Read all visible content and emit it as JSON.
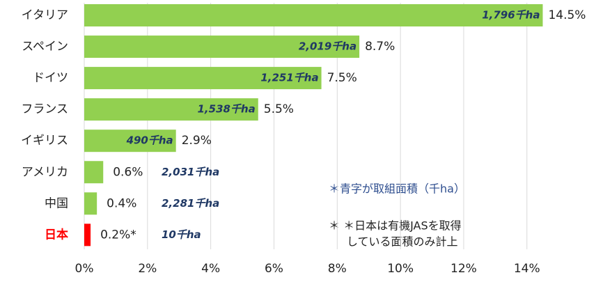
{
  "chart_data": {
    "type": "bar",
    "orientation": "horizontal",
    "categories": [
      "イタリア",
      "スペイン",
      "ドイツ",
      "フランス",
      "イギリス",
      "アメリカ",
      "中国",
      "日本"
    ],
    "values": [
      14.5,
      8.7,
      7.5,
      5.5,
      2.9,
      0.6,
      0.4,
      0.2
    ],
    "value_labels": [
      "14.5%",
      "8.7%",
      "7.5%",
      "5.5%",
      "2.9%",
      "0.6%",
      "0.4%",
      "0.2%*"
    ],
    "area_labels": [
      "1,796千ha",
      "2,019千ha",
      "1,251千ha",
      "1,538千ha",
      "490千ha",
      "2,031千ha",
      "2,281千ha",
      "10千ha"
    ],
    "colors": [
      "#92d050",
      "#92d050",
      "#92d050",
      "#92d050",
      "#92d050",
      "#92d050",
      "#92d050",
      "#ff0000"
    ],
    "highlight_category": "日本",
    "highlight_color": "#ff0000",
    "xlim": [
      0,
      14.6
    ],
    "xticks": [
      {
        "value": 0,
        "label": "0%"
      },
      {
        "value": 2,
        "label": "2%"
      },
      {
        "value": 4,
        "label": "4%"
      },
      {
        "value": 6,
        "label": "6%"
      },
      {
        "value": 8,
        "label": "8%"
      },
      {
        "value": 10,
        "label": "10%"
      },
      {
        "value": 12,
        "label": "12%"
      },
      {
        "value": 14,
        "label": "14%"
      }
    ],
    "grid": true,
    "annotations": [
      "＊青字が取組面積（千ha）",
      "＊ ＊日本は有機JASを取得",
      "している面積のみ計上"
    ]
  }
}
